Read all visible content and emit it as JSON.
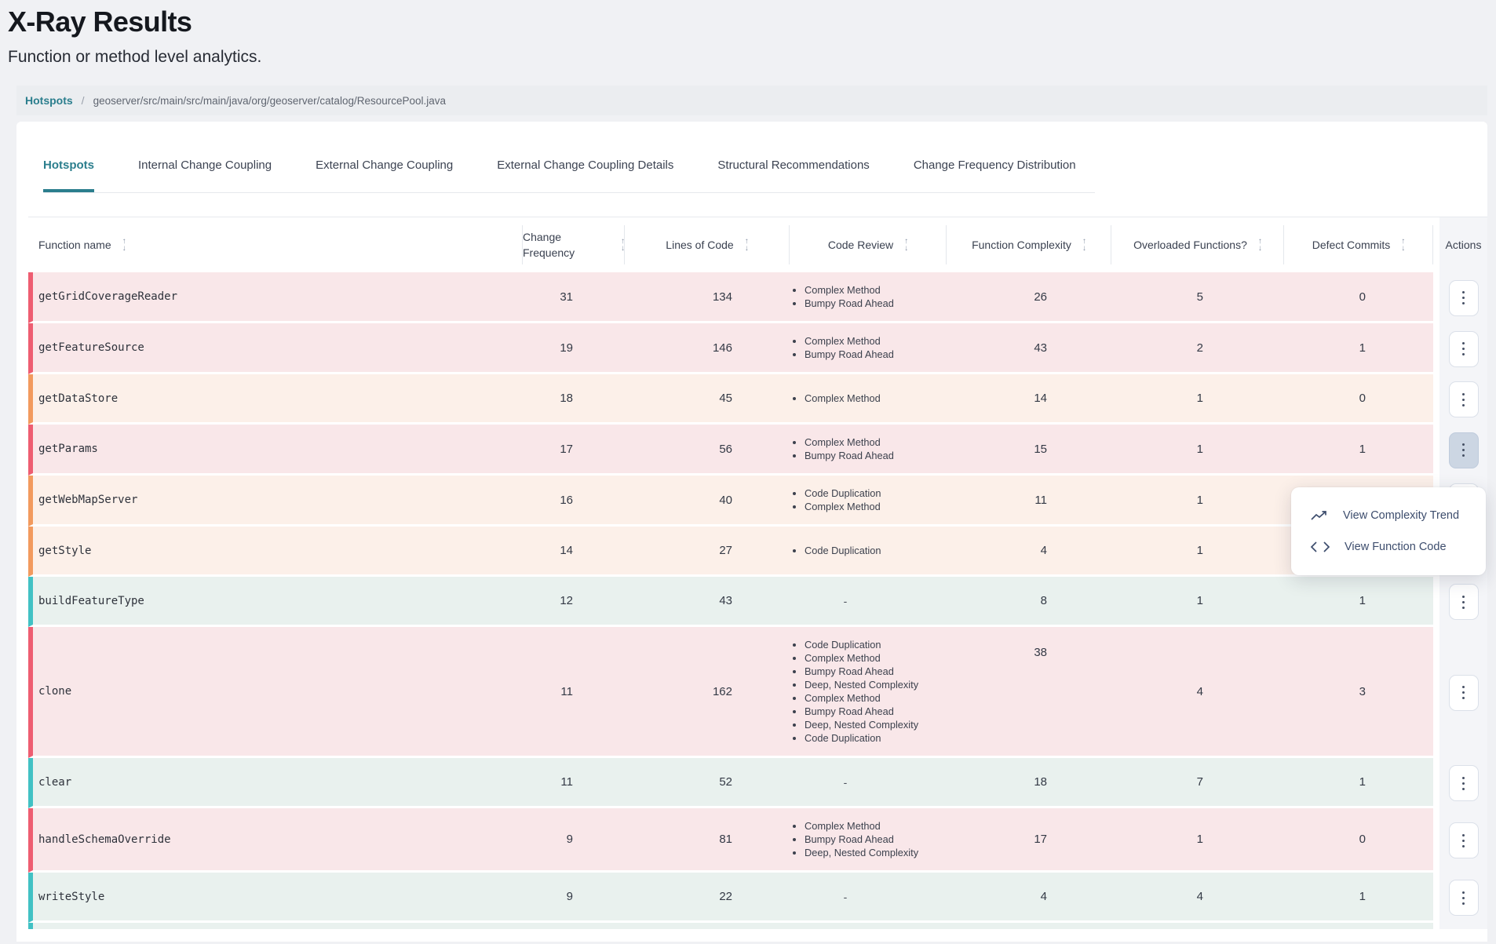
{
  "page": {
    "title": "X-Ray Results",
    "subtitle": "Function or method level analytics."
  },
  "breadcrumb": {
    "link": "Hotspots",
    "separator": "/",
    "path": "geoserver/src/main/src/main/java/org/geoserver/catalog/ResourcePool.java"
  },
  "tabs": [
    {
      "label": "Hotspots",
      "active": true
    },
    {
      "label": "Internal Change Coupling",
      "active": false
    },
    {
      "label": "External Change Coupling",
      "active": false
    },
    {
      "label": "External Change Coupling Details",
      "active": false
    },
    {
      "label": "Structural Recommendations",
      "active": false
    },
    {
      "label": "Change Frequency Distribution",
      "active": false
    }
  ],
  "table": {
    "empty_placeholder": "-",
    "columns": [
      {
        "label": "Function name",
        "sortable": true
      },
      {
        "label": "Change Frequency",
        "sortable": true
      },
      {
        "label": "Lines of Code",
        "sortable": true
      },
      {
        "label": "Code Review",
        "sortable": true
      },
      {
        "label": "Function Complexity",
        "sortable": true
      },
      {
        "label": "Overloaded Functions?",
        "sortable": true
      },
      {
        "label": "Defect Commits",
        "sortable": true
      },
      {
        "label": "Actions",
        "sortable": false
      }
    ],
    "rows": [
      {
        "function": "getGridCoverageReader",
        "change_frequency": 31,
        "lines_of_code": 134,
        "code_review": [
          "Complex Method",
          "Bumpy Road Ahead"
        ],
        "function_complexity": 26,
        "overloaded_functions": 5,
        "defect_commits": 0,
        "severity": "red"
      },
      {
        "function": "getFeatureSource",
        "change_frequency": 19,
        "lines_of_code": 146,
        "code_review": [
          "Complex Method",
          "Bumpy Road Ahead"
        ],
        "function_complexity": 43,
        "overloaded_functions": 2,
        "defect_commits": 1,
        "severity": "red"
      },
      {
        "function": "getDataStore",
        "change_frequency": 18,
        "lines_of_code": 45,
        "code_review": [
          "Complex Method"
        ],
        "function_complexity": 14,
        "overloaded_functions": 1,
        "defect_commits": 0,
        "severity": "orange"
      },
      {
        "function": "getParams",
        "change_frequency": 17,
        "lines_of_code": 56,
        "code_review": [
          "Complex Method",
          "Bumpy Road Ahead"
        ],
        "function_complexity": 15,
        "overloaded_functions": 1,
        "defect_commits": 1,
        "severity": "red",
        "menu_open": true
      },
      {
        "function": "getWebMapServer",
        "change_frequency": 16,
        "lines_of_code": 40,
        "code_review": [
          "Code Duplication",
          "Complex Method"
        ],
        "function_complexity": 11,
        "overloaded_functions": 1,
        "defect_commits": null,
        "severity": "orange"
      },
      {
        "function": "getStyle",
        "change_frequency": 14,
        "lines_of_code": 27,
        "code_review": [
          "Code Duplication"
        ],
        "function_complexity": 4,
        "overloaded_functions": 1,
        "defect_commits": null,
        "severity": "orange"
      },
      {
        "function": "buildFeatureType",
        "change_frequency": 12,
        "lines_of_code": 43,
        "code_review": [],
        "function_complexity": 8,
        "overloaded_functions": 1,
        "defect_commits": 1,
        "severity": "teal"
      },
      {
        "function": "clone",
        "change_frequency": 11,
        "lines_of_code": 162,
        "code_review": [
          "Code Duplication",
          "Complex Method",
          "Bumpy Road Ahead",
          "Deep, Nested Complexity",
          "Complex Method",
          "Bumpy Road Ahead",
          "Deep, Nested Complexity",
          "Code Duplication"
        ],
        "function_complexity": 38,
        "overloaded_functions": 4,
        "defect_commits": 3,
        "severity": "red"
      },
      {
        "function": "clear",
        "change_frequency": 11,
        "lines_of_code": 52,
        "code_review": [],
        "function_complexity": 18,
        "overloaded_functions": 7,
        "defect_commits": 1,
        "severity": "teal"
      },
      {
        "function": "handleSchemaOverride",
        "change_frequency": 9,
        "lines_of_code": 81,
        "code_review": [
          "Complex Method",
          "Bumpy Road Ahead",
          "Deep, Nested Complexity"
        ],
        "function_complexity": 17,
        "overloaded_functions": 1,
        "defect_commits": 0,
        "severity": "red"
      },
      {
        "function": "writeStyle",
        "change_frequency": 9,
        "lines_of_code": 22,
        "code_review": [],
        "function_complexity": 4,
        "overloaded_functions": 4,
        "defect_commits": 1,
        "severity": "teal"
      },
      {
        "function": "",
        "severity": "teal",
        "partial": true
      }
    ]
  },
  "context_menu": {
    "items": [
      {
        "icon": "trend-line-icon",
        "label": "View Complexity Trend"
      },
      {
        "icon": "code-brackets-icon",
        "label": "View Function Code"
      }
    ]
  },
  "icons": {
    "sort": "sort-arrows-icon",
    "row_actions": "kebab-menu-icon"
  },
  "colors": {
    "brand_teal": "#2b7e8d",
    "severity_red": "#ee5d71",
    "severity_orange": "#f29a5e",
    "severity_teal": "#41c1c4",
    "row_red_bg": "#f9e7e9",
    "row_orange_bg": "#fcf0e9",
    "row_teal_bg": "#e9f1ee",
    "actions_column_bg": "#f4f5f8",
    "active_kebab_bg": "#ccd6e3"
  }
}
